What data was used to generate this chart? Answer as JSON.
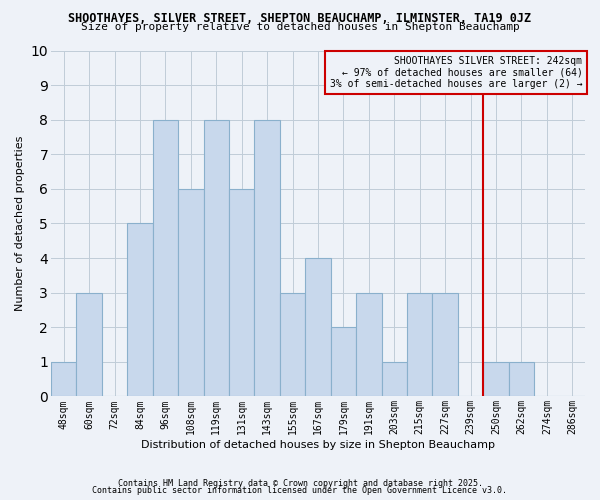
{
  "title1": "SHOOTHAYES, SILVER STREET, SHEPTON BEAUCHAMP, ILMINSTER, TA19 0JZ",
  "title2": "Size of property relative to detached houses in Shepton Beauchamp",
  "xlabel": "Distribution of detached houses by size in Shepton Beauchamp",
  "ylabel": "Number of detached properties",
  "bin_labels": [
    "48sqm",
    "60sqm",
    "72sqm",
    "84sqm",
    "96sqm",
    "108sqm",
    "119sqm",
    "131sqm",
    "143sqm",
    "155sqm",
    "167sqm",
    "179sqm",
    "191sqm",
    "203sqm",
    "215sqm",
    "227sqm",
    "239sqm",
    "250sqm",
    "262sqm",
    "274sqm",
    "286sqm"
  ],
  "bar_heights": [
    1,
    3,
    0,
    5,
    8,
    6,
    8,
    6,
    8,
    3,
    4,
    2,
    3,
    1,
    3,
    3,
    0,
    1,
    1,
    0,
    0
  ],
  "bar_color": "#c8d8ec",
  "bar_edge_color": "#8ab0cc",
  "grid_color": "#c0ccd8",
  "background_color": "#eef2f8",
  "vline_color": "#cc0000",
  "annotation_text": "SHOOTHAYES SILVER STREET: 242sqm\n← 97% of detached houses are smaller (64)\n3% of semi-detached houses are larger (2) →",
  "annotation_box_color": "#cc0000",
  "ylim": [
    0,
    10
  ],
  "footnote1": "Contains HM Land Registry data © Crown copyright and database right 2025.",
  "footnote2": "Contains public sector information licensed under the Open Government Licence v3.0.",
  "title1_fontsize": 8.5,
  "title2_fontsize": 8,
  "axis_label_fontsize": 8,
  "tick_fontsize": 7,
  "annotation_fontsize": 7,
  "footnote_fontsize": 6
}
